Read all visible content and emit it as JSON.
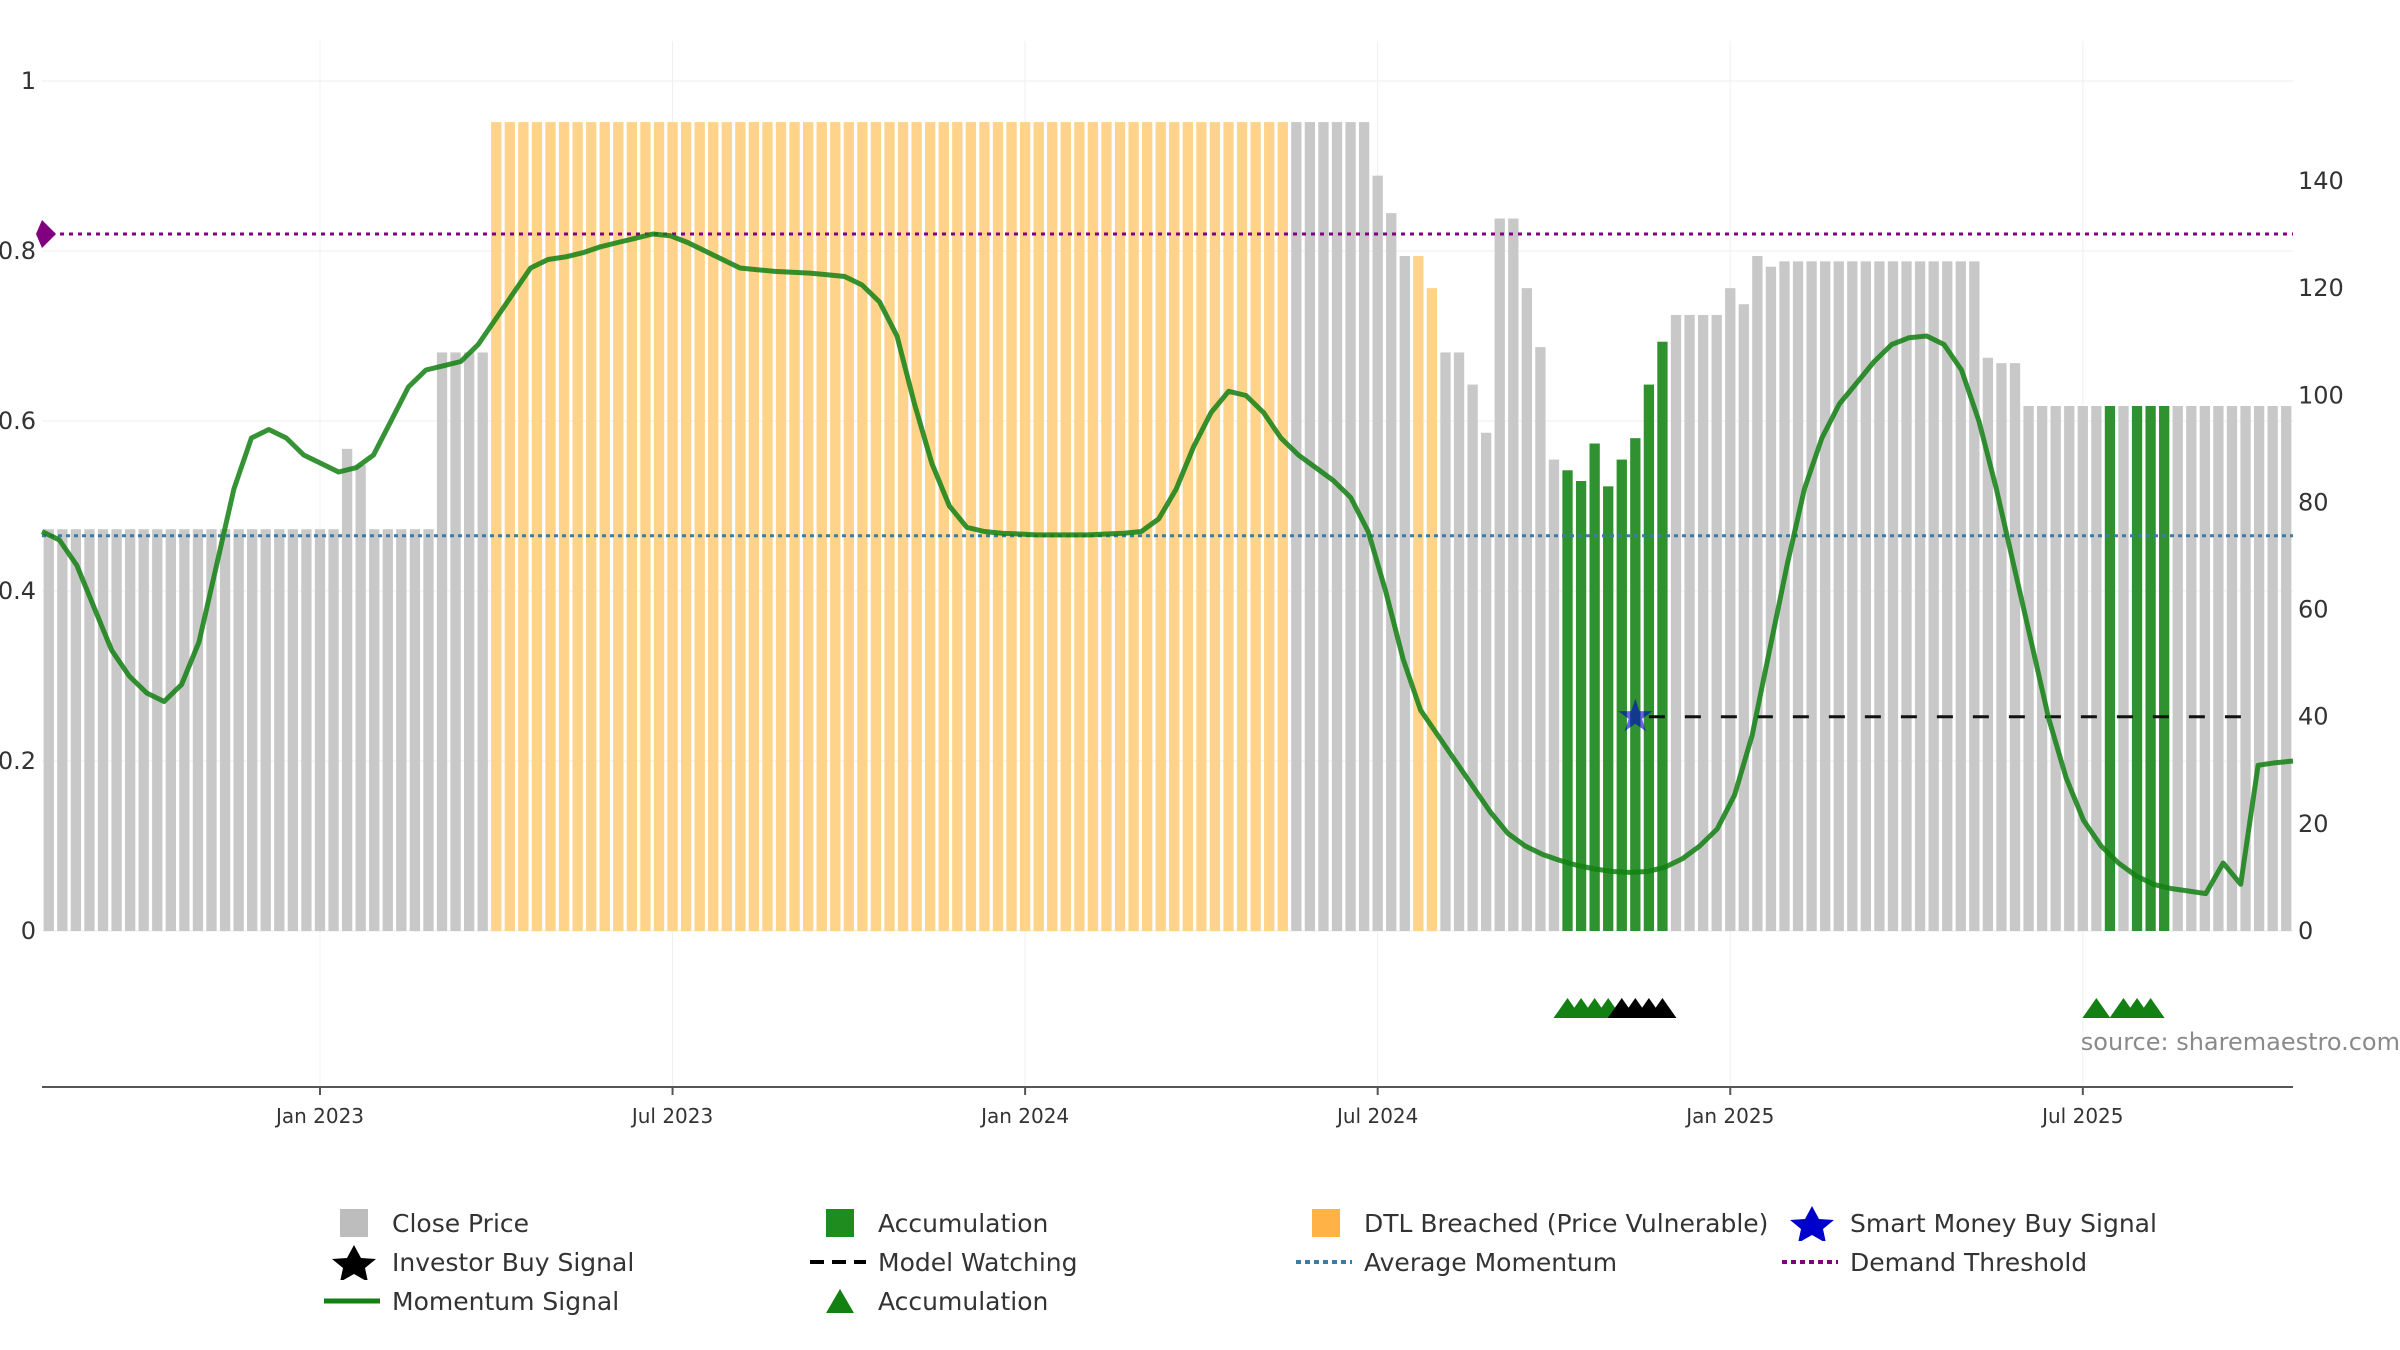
{
  "chart_data": {
    "type": "bar",
    "title": "",
    "source_text": "source: sharemaestro.com",
    "left_axis": {
      "ticks": [
        "0",
        "0.2",
        "0.4",
        "0.6",
        "0.8",
        "1"
      ],
      "range": [
        0,
        1
      ]
    },
    "right_axis": {
      "ticks": [
        "0",
        "20",
        "40",
        "60",
        "80",
        "100",
        "120",
        "140"
      ],
      "range": [
        0,
        160
      ]
    },
    "x_ticks": [
      "Jan 2023",
      "Jul 2023",
      "Jan 2024",
      "Jul 2024",
      "Jan 2025",
      "Jul 2025"
    ],
    "x_tick_weeks": [
      20,
      46,
      72,
      98,
      124,
      150
    ],
    "bars_close_price": [
      75,
      75,
      75,
      75,
      75,
      75,
      75,
      75,
      75,
      75,
      75,
      75,
      75,
      75,
      75,
      75,
      75,
      75,
      75,
      75,
      75,
      75,
      90,
      87,
      75,
      75,
      75,
      75,
      75,
      108,
      108,
      108,
      108,
      151,
      151,
      151,
      151,
      151,
      151,
      151,
      151,
      151,
      151,
      151,
      151,
      151,
      151,
      151,
      151,
      151,
      151,
      151,
      151,
      151,
      151,
      151,
      151,
      151,
      151,
      151,
      151,
      151,
      151,
      151,
      151,
      151,
      151,
      151,
      151,
      151,
      151,
      151,
      151,
      151,
      151,
      151,
      151,
      151,
      151,
      151,
      151,
      151,
      151,
      151,
      151,
      151,
      151,
      151,
      151,
      151,
      151,
      151,
      151,
      151,
      151,
      151,
      151,
      151,
      141,
      134,
      126,
      126,
      120,
      108,
      108,
      102,
      93,
      133,
      133,
      120,
      109,
      88,
      86,
      84,
      91,
      83,
      88,
      92,
      102,
      110,
      115,
      115,
      115,
      115,
      120,
      117,
      126,
      124,
      125,
      125,
      125,
      125,
      125,
      125,
      125,
      125,
      125,
      125,
      125,
      125,
      125,
      125,
      125,
      107,
      106,
      106,
      98,
      98,
      98,
      98,
      98,
      98,
      98,
      98,
      98,
      98,
      98,
      98,
      98,
      98,
      98,
      98,
      98,
      98,
      98,
      98
    ],
    "bar_categories_by_week": "week 0-32 close, 33-91 DTL breached, 92-111 mixed close/DTL (weeks 101-102 DTL), 112-119 accumulation, 120-150 close, 151-154 mixed accumulation",
    "dtl_weeks": [
      33,
      91,
      101,
      102
    ],
    "accumulation_weeks": [
      [
        112,
        119
      ],
      [
        152,
        152
      ],
      [
        154,
        156
      ]
    ],
    "momentum_signal": [
      0.47,
      0.46,
      0.43,
      0.38,
      0.33,
      0.3,
      0.28,
      0.27,
      0.29,
      0.34,
      0.43,
      0.52,
      0.58,
      0.59,
      0.58,
      0.56,
      0.55,
      0.54,
      0.545,
      0.56,
      0.6,
      0.64,
      0.66,
      0.665,
      0.67,
      0.69,
      0.72,
      0.75,
      0.78,
      0.79,
      0.793,
      0.798,
      0.805,
      0.81,
      0.815,
      0.82,
      0.818,
      0.81,
      0.8,
      0.79,
      0.78,
      0.778,
      0.776,
      0.775,
      0.774,
      0.772,
      0.77,
      0.76,
      0.74,
      0.7,
      0.62,
      0.55,
      0.5,
      0.475,
      0.47,
      0.468,
      0.467,
      0.466,
      0.466,
      0.466,
      0.466,
      0.467,
      0.468,
      0.47,
      0.485,
      0.52,
      0.57,
      0.61,
      0.635,
      0.63,
      0.61,
      0.58,
      0.56,
      0.545,
      0.53,
      0.51,
      0.47,
      0.4,
      0.32,
      0.26,
      0.23,
      0.2,
      0.17,
      0.14,
      0.115,
      0.1,
      0.09,
      0.083,
      0.077,
      0.073,
      0.07,
      0.069,
      0.07,
      0.075,
      0.085,
      0.1,
      0.12,
      0.16,
      0.23,
      0.33,
      0.43,
      0.52,
      0.58,
      0.62,
      0.645,
      0.67,
      0.69,
      0.698,
      0.7,
      0.69,
      0.66,
      0.6,
      0.52,
      0.43,
      0.34,
      0.25,
      0.18,
      0.13,
      0.1,
      0.08,
      0.065,
      0.055,
      0.05,
      0.047,
      0.044,
      0.08,
      0.055,
      0.195,
      0.198,
      0.2
    ],
    "average_momentum": 0.465,
    "demand_threshold": 0.82,
    "model_watching_level": 40,
    "smart_money_buy_signal": {
      "week": 117,
      "value": 40
    },
    "accumulation_triangles": [
      112,
      113,
      114,
      115
    ],
    "investor_buy_triangles": [
      116,
      117,
      118,
      119
    ],
    "late_accumulation_triangles": [
      151,
      153,
      154,
      155
    ],
    "series": [
      {
        "name": "Close Price",
        "color": "#bdbdbd"
      },
      {
        "name": "Accumulation",
        "color": "#1e8c1e"
      },
      {
        "name": "DTL Breached (Price Vulnerable)",
        "color": "#ffb347"
      },
      {
        "name": "Smart Money Buy Signal",
        "color": "#0000cc"
      },
      {
        "name": "Investor Buy Signal",
        "color": "#000000"
      },
      {
        "name": "Model Watching",
        "color": "#000000"
      },
      {
        "name": "Average Momentum",
        "color": "#3a7ca5"
      },
      {
        "name": "Demand Threshold",
        "color": "#800080"
      },
      {
        "name": "Momentum Signal",
        "color": "#128012"
      },
      {
        "name": "Accumulation",
        "color": "#128012"
      }
    ]
  },
  "legend": {
    "row1": [
      "Close Price",
      "Accumulation",
      "DTL Breached (Price Vulnerable)",
      "Smart Money Buy Signal"
    ],
    "row2": [
      "Investor Buy Signal",
      "Model Watching",
      "Average Momentum",
      "Demand Threshold"
    ],
    "row3": [
      "Momentum Signal",
      "Accumulation"
    ]
  }
}
